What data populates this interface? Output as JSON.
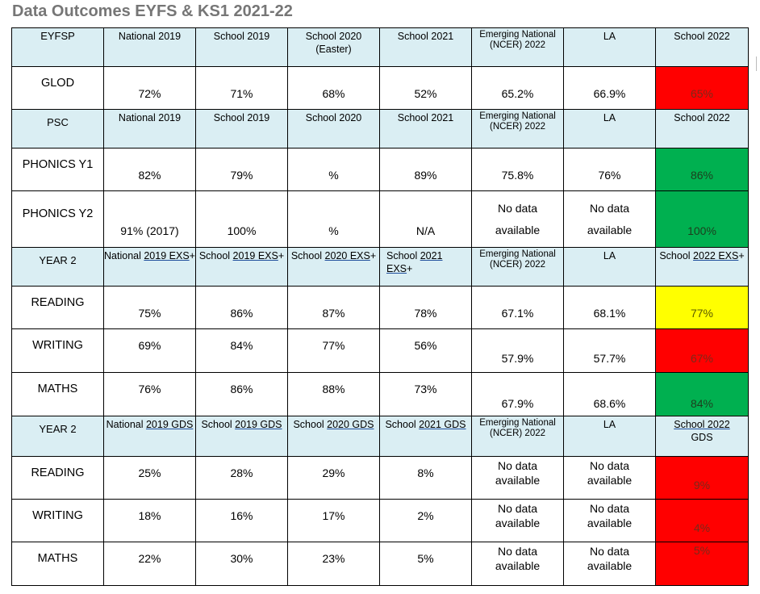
{
  "title": "Data Outcomes EYFS & KS1 2021-22",
  "colors": {
    "header_bg": "#daeef3",
    "red": "#ff0000",
    "green": "#00b050",
    "yellow": "#ffff00"
  },
  "eyfsp_header": {
    "label": "EYFSP",
    "cols": [
      "National 2019",
      "School 2019",
      "School 2020 (Easter)",
      "School 2021",
      "Emerging National (NCER) 2022",
      "LA",
      "School 2022"
    ]
  },
  "glod": {
    "label": "GLOD",
    "values": [
      "72%",
      "71%",
      "68%",
      "52%",
      "65.2%",
      "66.9%",
      "65%"
    ],
    "status": "red"
  },
  "psc_header": {
    "label": "PSC",
    "cols": [
      "National 2019",
      "School 2019",
      "School 2020",
      "School 2021",
      "Emerging National (NCER) 2022",
      "LA",
      "School 2022"
    ]
  },
  "phonics_y1": {
    "label": "PHONICS Y1",
    "values": [
      "82%",
      "79%",
      "%",
      "89%",
      "75.8%",
      "76%",
      "86%"
    ],
    "status": "green"
  },
  "phonics_y2": {
    "label": "PHONICS Y2",
    "values": [
      "91% (2017)",
      "100%",
      "%",
      "N/A",
      "No data available",
      "No data available",
      "100%"
    ],
    "status": "green"
  },
  "y2_exs_header": {
    "label": "YEAR 2",
    "cols": [
      {
        "a": "National ",
        "b": "2019 EXS",
        "c": "+"
      },
      {
        "a": "School ",
        "b": "2019 EXS",
        "c": "+"
      },
      {
        "a": "School ",
        "b": "2020 EXS",
        "c": "+"
      },
      {
        "a": "School ",
        "b": "2021 EXS",
        "c": "+"
      },
      "Emerging National (NCER) 2022",
      "LA",
      {
        "a": "School ",
        "b": "2022 EXS",
        "c": "+"
      }
    ]
  },
  "exs_reading": {
    "label": "READING",
    "values": [
      "75%",
      "86%",
      "87%",
      "78%",
      "67.1%",
      "68.1%",
      "77%"
    ],
    "status": "yellow"
  },
  "exs_writing": {
    "label": "WRITING",
    "values": [
      "69%",
      "84%",
      "77%",
      "56%",
      "57.9%",
      "57.7%",
      "67%"
    ],
    "status": "red"
  },
  "exs_maths": {
    "label": "MATHS",
    "values": [
      "76%",
      "86%",
      "88%",
      "73%",
      "67.9%",
      "68.6%",
      "84%"
    ],
    "status": "green"
  },
  "y2_gds_header": {
    "label": "YEAR 2",
    "cols": [
      {
        "a": "National ",
        "b": "2019 GDS"
      },
      {
        "a": "School ",
        "b": "2019 GDS"
      },
      {
        "a": "School ",
        "b": "2020 GDS"
      },
      {
        "a": "School ",
        "b": "2021 GDS"
      },
      "Emerging National (NCER) 2022",
      "LA",
      {
        "a": "",
        "b": "School  2022",
        "c": "GDS"
      }
    ]
  },
  "gds_reading": {
    "label": "READING",
    "values": [
      "25%",
      "28%",
      "29%",
      "8%",
      "No data available",
      "No data available",
      "9%"
    ],
    "status": "red"
  },
  "gds_writing": {
    "label": "WRITING",
    "values": [
      "18%",
      "16%",
      "17%",
      "2%",
      "No data available",
      "No data available",
      "4%"
    ],
    "status": "red"
  },
  "gds_maths": {
    "label": "MATHS",
    "values": [
      "22%",
      "30%",
      "23%",
      "5%",
      "No data available",
      "No data available",
      "5%"
    ],
    "status": "red"
  }
}
